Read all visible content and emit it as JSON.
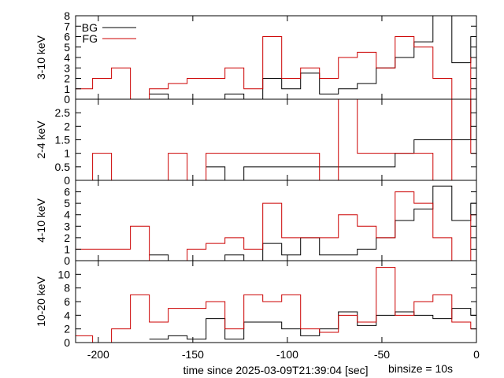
{
  "chart_data": {
    "type": "line",
    "step": "hv",
    "x_range": [
      -212,
      0
    ],
    "x_ticks": [
      -200,
      -150,
      -100,
      -50,
      0
    ],
    "x_tick_labels": [
      "-200",
      "-150",
      "-100",
      "-50",
      "0"
    ],
    "xlabel": "time since 2025-03-09T21:39:04 [sec]",
    "annotation": "binsize = 10s",
    "legend": {
      "position": "top-left",
      "entries": [
        {
          "name": "BG",
          "color": "#000000"
        },
        {
          "name": "FG",
          "color": "#cc0000"
        }
      ]
    },
    "panels": [
      {
        "ylabel": "3-10 keV",
        "ylim": [
          0,
          8
        ],
        "y_ticks": [
          0,
          1,
          2,
          3,
          4,
          5,
          6,
          7,
          8
        ],
        "y_tick_labels": [
          "0",
          "1",
          "2",
          "3",
          "4",
          "5",
          "6",
          "7",
          "8"
        ],
        "series": [
          {
            "name": "BG",
            "color": "#000000",
            "x": [
              -173,
              -163,
              -143,
              -133,
              -123,
              -113,
              -103,
              -93,
              -83,
              -73,
              -63,
              -53,
              -43,
              -33,
              -23,
              -13,
              -3
            ],
            "y": [
              0.5,
              0,
              0,
              0.5,
              0,
              2,
              1,
              2.5,
              0.5,
              1,
              1.5,
              3,
              4,
              5.5,
              8,
              3.5,
              6
            ]
          },
          {
            "name": "FG",
            "color": "#cc0000",
            "x": [
              -212,
              -203,
              -193,
              -183,
              -173,
              -163,
              -153,
              -143,
              -133,
              -123,
              -113,
              -103,
              -93,
              -83,
              -73,
              -63,
              -53,
              -43,
              -33,
              -23,
              -13,
              -3
            ],
            "y": [
              1,
              2,
              3,
              0,
              1,
              1.5,
              2,
              2,
              3,
              1,
              6,
              2,
              3,
              2,
              4,
              4.5,
              3,
              6,
              5,
              2,
              0,
              4
            ]
          }
        ]
      },
      {
        "ylabel": "2-4 keV",
        "ylim": [
          0,
          3
        ],
        "y_ticks": [
          0,
          0.5,
          1,
          1.5,
          2,
          2.5
        ],
        "y_tick_labels": [
          "0",
          "0.5",
          "1",
          "1.5",
          "2",
          "2.5"
        ],
        "series": [
          {
            "name": "BG",
            "color": "#000000",
            "x": [
              -143,
              -133,
              -123,
              -103,
              -83,
              -73,
              -63,
              -53,
              -43,
              -33,
              -23,
              -13,
              -3
            ],
            "y": [
              0.5,
              0,
              0.5,
              0.5,
              0.5,
              0.5,
              0.5,
              0.5,
              1,
              1.5,
              1.5,
              1.5,
              3
            ]
          },
          {
            "name": "FG",
            "color": "#cc0000",
            "x": [
              -212,
              -203,
              -193,
              -173,
              -163,
              -153,
              -143,
              -133,
              -123,
              -113,
              -103,
              -93,
              -83,
              -73,
              -63,
              -53,
              -43,
              -33,
              -23,
              -13,
              -3
            ],
            "y": [
              0,
              1,
              0,
              0,
              1,
              0,
              1,
              1,
              1,
              1,
              1,
              1,
              0,
              3,
              1,
              1,
              1,
              1,
              0,
              3,
              1
            ]
          }
        ]
      },
      {
        "ylabel": "4-10 keV",
        "ylim": [
          0,
          7
        ],
        "y_ticks": [
          0,
          1,
          2,
          3,
          4,
          5,
          6
        ],
        "y_tick_labels": [
          "0",
          "1",
          "2",
          "3",
          "4",
          "5",
          "6"
        ],
        "series": [
          {
            "name": "BG",
            "color": "#000000",
            "x": [
              -173,
              -163,
              -143,
              -133,
              -123,
              -113,
              -103,
              -93,
              -83,
              -73,
              -63,
              -53,
              -43,
              -33,
              -23,
              -13,
              -3
            ],
            "y": [
              0.5,
              0,
              0,
              0.5,
              0,
              1.5,
              0.5,
              2,
              0.5,
              0.5,
              1,
              2,
              3.5,
              4.5,
              6.5,
              3.5,
              5
            ]
          },
          {
            "name": "FG",
            "color": "#cc0000",
            "x": [
              -212,
              -193,
              -183,
              -173,
              -153,
              -143,
              -133,
              -123,
              -113,
              -103,
              -93,
              -83,
              -73,
              -63,
              -53,
              -43,
              -33,
              -23,
              -13,
              -3
            ],
            "y": [
              1,
              1,
              3,
              0,
              1,
              1.5,
              2,
              1,
              5,
              2,
              2,
              2,
              4,
              3,
              2,
              6,
              5,
              2,
              0,
              4
            ]
          }
        ]
      },
      {
        "ylabel": "10-20 keV",
        "ylim": [
          0,
          12
        ],
        "y_ticks": [
          0,
          2,
          4,
          6,
          8,
          10
        ],
        "y_tick_labels": [
          "0",
          "2",
          "4",
          "6",
          "8",
          "10"
        ],
        "series": [
          {
            "name": "BG",
            "color": "#000000",
            "x": [
              -173,
              -163,
              -153,
              -143,
              -133,
              -123,
              -113,
              -103,
              -93,
              -83,
              -73,
              -63,
              -53,
              -43,
              -33,
              -23,
              -13,
              -3
            ],
            "y": [
              0.5,
              1,
              0.5,
              3.5,
              0.5,
              3,
              3,
              2,
              1,
              2,
              4.5,
              2.5,
              4,
              4.5,
              4,
              3.5,
              5,
              4
            ]
          },
          {
            "name": "FG",
            "color": "#cc0000",
            "x": [
              -212,
              -203,
              -193,
              -183,
              -173,
              -163,
              -143,
              -133,
              -123,
              -113,
              -103,
              -93,
              -83,
              -73,
              -63,
              -53,
              -43,
              -33,
              -23,
              -13,
              -3
            ],
            "y": [
              1,
              0,
              2,
              7,
              3,
              5,
              6,
              2,
              7,
              6,
              7,
              2,
              1.5,
              4,
              3,
              11,
              4,
              6,
              7,
              3,
              2
            ]
          }
        ]
      }
    ]
  }
}
